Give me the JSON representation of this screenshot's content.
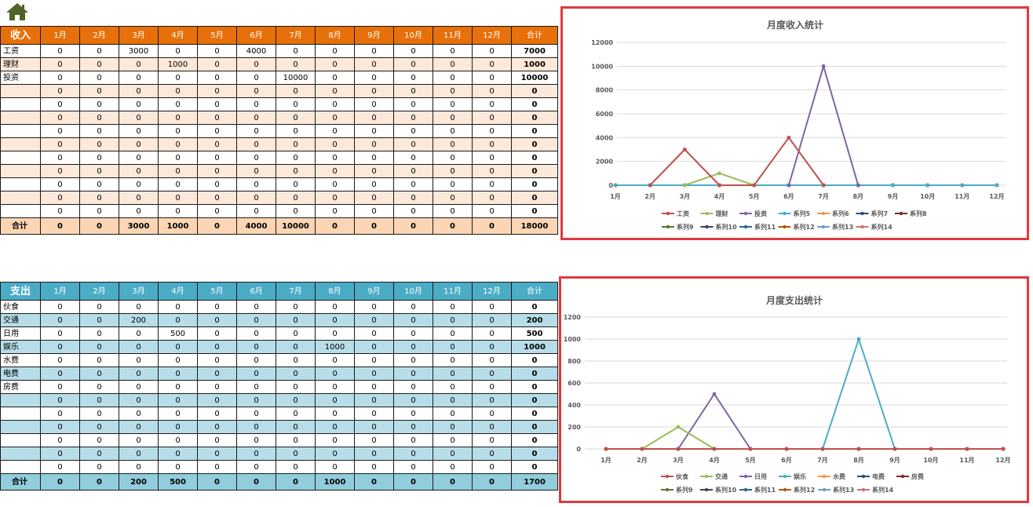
{
  "toolbar": {
    "home_icon": "home-icon",
    "home_color": "#4f6228"
  },
  "months": [
    "1月",
    "2月",
    "3月",
    "4月",
    "5月",
    "6月",
    "7月",
    "8月",
    "9月",
    "10月",
    "11月",
    "12月"
  ],
  "total_header": "合计",
  "sum_label": "合计",
  "income": {
    "corner": "收入",
    "header_color": "#e7700a",
    "rows": [
      {
        "label": "工资",
        "values": [
          0,
          0,
          3000,
          0,
          0,
          4000,
          0,
          0,
          0,
          0,
          0,
          0
        ],
        "total": 7000
      },
      {
        "label": "理财",
        "values": [
          0,
          0,
          0,
          1000,
          0,
          0,
          0,
          0,
          0,
          0,
          0,
          0
        ],
        "total": 1000
      },
      {
        "label": "投资",
        "values": [
          0,
          0,
          0,
          0,
          0,
          0,
          10000,
          0,
          0,
          0,
          0,
          0
        ],
        "total": 10000
      },
      {
        "label": "",
        "values": [
          0,
          0,
          0,
          0,
          0,
          0,
          0,
          0,
          0,
          0,
          0,
          0
        ],
        "total": 0
      },
      {
        "label": "",
        "values": [
          0,
          0,
          0,
          0,
          0,
          0,
          0,
          0,
          0,
          0,
          0,
          0
        ],
        "total": 0
      },
      {
        "label": "",
        "values": [
          0,
          0,
          0,
          0,
          0,
          0,
          0,
          0,
          0,
          0,
          0,
          0
        ],
        "total": 0
      },
      {
        "label": "",
        "values": [
          0,
          0,
          0,
          0,
          0,
          0,
          0,
          0,
          0,
          0,
          0,
          0
        ],
        "total": 0
      },
      {
        "label": "",
        "values": [
          0,
          0,
          0,
          0,
          0,
          0,
          0,
          0,
          0,
          0,
          0,
          0
        ],
        "total": 0
      },
      {
        "label": "",
        "values": [
          0,
          0,
          0,
          0,
          0,
          0,
          0,
          0,
          0,
          0,
          0,
          0
        ],
        "total": 0
      },
      {
        "label": "",
        "values": [
          0,
          0,
          0,
          0,
          0,
          0,
          0,
          0,
          0,
          0,
          0,
          0
        ],
        "total": 0
      },
      {
        "label": "",
        "values": [
          0,
          0,
          0,
          0,
          0,
          0,
          0,
          0,
          0,
          0,
          0,
          0
        ],
        "total": 0
      },
      {
        "label": "",
        "values": [
          0,
          0,
          0,
          0,
          0,
          0,
          0,
          0,
          0,
          0,
          0,
          0
        ],
        "total": 0
      },
      {
        "label": "",
        "values": [
          0,
          0,
          0,
          0,
          0,
          0,
          0,
          0,
          0,
          0,
          0,
          0
        ],
        "total": 0
      }
    ],
    "sum_values": [
      0,
      0,
      3000,
      1000,
      0,
      4000,
      10000,
      0,
      0,
      0,
      0,
      0
    ],
    "sum_total": 18000
  },
  "expense": {
    "corner": "支出",
    "header_color": "#4bacc6",
    "rows": [
      {
        "label": "伙食",
        "values": [
          0,
          0,
          0,
          0,
          0,
          0,
          0,
          0,
          0,
          0,
          0,
          0
        ],
        "total": 0
      },
      {
        "label": "交通",
        "values": [
          0,
          0,
          200,
          0,
          0,
          0,
          0,
          0,
          0,
          0,
          0,
          0
        ],
        "total": 200
      },
      {
        "label": "日用",
        "values": [
          0,
          0,
          0,
          500,
          0,
          0,
          0,
          0,
          0,
          0,
          0,
          0
        ],
        "total": 500
      },
      {
        "label": "娱乐",
        "values": [
          0,
          0,
          0,
          0,
          0,
          0,
          0,
          1000,
          0,
          0,
          0,
          0
        ],
        "total": 1000
      },
      {
        "label": "水费",
        "values": [
          0,
          0,
          0,
          0,
          0,
          0,
          0,
          0,
          0,
          0,
          0,
          0
        ],
        "total": 0
      },
      {
        "label": "电费",
        "values": [
          0,
          0,
          0,
          0,
          0,
          0,
          0,
          0,
          0,
          0,
          0,
          0
        ],
        "total": 0
      },
      {
        "label": "房费",
        "values": [
          0,
          0,
          0,
          0,
          0,
          0,
          0,
          0,
          0,
          0,
          0,
          0
        ],
        "total": 0
      },
      {
        "label": "",
        "values": [
          0,
          0,
          0,
          0,
          0,
          0,
          0,
          0,
          0,
          0,
          0,
          0
        ],
        "total": 0
      },
      {
        "label": "",
        "values": [
          0,
          0,
          0,
          0,
          0,
          0,
          0,
          0,
          0,
          0,
          0,
          0
        ],
        "total": 0
      },
      {
        "label": "",
        "values": [
          0,
          0,
          0,
          0,
          0,
          0,
          0,
          0,
          0,
          0,
          0,
          0
        ],
        "total": 0
      },
      {
        "label": "",
        "values": [
          0,
          0,
          0,
          0,
          0,
          0,
          0,
          0,
          0,
          0,
          0,
          0
        ],
        "total": 0
      },
      {
        "label": "",
        "values": [
          0,
          0,
          0,
          0,
          0,
          0,
          0,
          0,
          0,
          0,
          0,
          0
        ],
        "total": 0
      },
      {
        "label": "",
        "values": [
          0,
          0,
          0,
          0,
          0,
          0,
          0,
          0,
          0,
          0,
          0,
          0
        ],
        "total": 0
      }
    ],
    "sum_values": [
      0,
      0,
      200,
      500,
      0,
      0,
      0,
      1000,
      0,
      0,
      0,
      0
    ],
    "sum_total": 1700
  },
  "chart_data": [
    {
      "type": "line",
      "title": "月度收入统计",
      "categories": [
        "1月",
        "2月",
        "3月",
        "4月",
        "5月",
        "6月",
        "7月",
        "8月",
        "9月",
        "10月",
        "11月",
        "12月"
      ],
      "ylim": [
        0,
        12000
      ],
      "yticks": [
        0,
        2000,
        4000,
        6000,
        8000,
        10000,
        12000
      ],
      "grid": true,
      "legend": "bottom",
      "series": [
        {
          "name": "工资",
          "color": "#c0504d",
          "values": [
            null,
            0,
            3000,
            0,
            0,
            4000,
            0,
            null,
            null,
            null,
            null,
            null
          ]
        },
        {
          "name": "理财",
          "color": "#9bbb59",
          "values": [
            null,
            null,
            0,
            1000,
            0,
            null,
            null,
            null,
            null,
            null,
            null,
            null
          ]
        },
        {
          "name": "投资",
          "color": "#8064a2",
          "values": [
            null,
            null,
            null,
            null,
            null,
            0,
            10000,
            0,
            null,
            null,
            null,
            null
          ]
        },
        {
          "name": "系列5",
          "color": "#4bacc6",
          "values": [
            0,
            0,
            0,
            0,
            0,
            0,
            0,
            0,
            0,
            0,
            0,
            0
          ]
        },
        {
          "name": "系列6",
          "color": "#f79646",
          "values": [
            0,
            0,
            0,
            0,
            0,
            0,
            0,
            0,
            0,
            0,
            0,
            0
          ]
        },
        {
          "name": "系列7",
          "color": "#2c4d75",
          "values": [
            0,
            0,
            0,
            0,
            0,
            0,
            0,
            0,
            0,
            0,
            0,
            0
          ]
        },
        {
          "name": "系列8",
          "color": "#772c2a",
          "values": [
            0,
            0,
            0,
            0,
            0,
            0,
            0,
            0,
            0,
            0,
            0,
            0
          ]
        },
        {
          "name": "系列9",
          "color": "#5f7530",
          "values": [
            0,
            0,
            0,
            0,
            0,
            0,
            0,
            0,
            0,
            0,
            0,
            0
          ]
        },
        {
          "name": "系列10",
          "color": "#4d3b62",
          "values": [
            0,
            0,
            0,
            0,
            0,
            0,
            0,
            0,
            0,
            0,
            0,
            0
          ]
        },
        {
          "name": "系列11",
          "color": "#276a7c",
          "values": [
            0,
            0,
            0,
            0,
            0,
            0,
            0,
            0,
            0,
            0,
            0,
            0
          ]
        },
        {
          "name": "系列12",
          "color": "#b65708",
          "values": [
            0,
            0,
            0,
            0,
            0,
            0,
            0,
            0,
            0,
            0,
            0,
            0
          ]
        },
        {
          "name": "系列13",
          "color": "#729aca",
          "values": [
            0,
            0,
            0,
            0,
            0,
            0,
            0,
            0,
            0,
            0,
            0,
            0
          ]
        },
        {
          "name": "系列14",
          "color": "#cd7371",
          "values": [
            0,
            0,
            0,
            0,
            0,
            0,
            0,
            0,
            0,
            0,
            0,
            0
          ]
        }
      ]
    },
    {
      "type": "line",
      "title": "月度支出统计",
      "categories": [
        "1月",
        "2月",
        "3月",
        "4月",
        "5月",
        "6月",
        "7月",
        "8月",
        "9月",
        "10月",
        "11月",
        "12月"
      ],
      "ylim": [
        0,
        1200
      ],
      "yticks": [
        0,
        200,
        400,
        600,
        800,
        1000,
        1200
      ],
      "grid": true,
      "legend": "bottom",
      "series": [
        {
          "name": "伙食",
          "color": "#c0504d",
          "values": [
            0,
            0,
            0,
            0,
            0,
            0,
            0,
            0,
            0,
            0,
            0,
            0
          ]
        },
        {
          "name": "交通",
          "color": "#9bbb59",
          "values": [
            null,
            0,
            200,
            0,
            null,
            null,
            null,
            null,
            null,
            null,
            null,
            null
          ]
        },
        {
          "name": "日用",
          "color": "#8064a2",
          "values": [
            null,
            null,
            0,
            500,
            0,
            null,
            null,
            null,
            null,
            null,
            null,
            null
          ]
        },
        {
          "name": "娱乐",
          "color": "#4bacc6",
          "values": [
            null,
            null,
            null,
            null,
            null,
            null,
            0,
            1000,
            0,
            null,
            null,
            null
          ]
        },
        {
          "name": "水费",
          "color": "#f79646",
          "values": [
            0,
            0,
            0,
            0,
            0,
            0,
            0,
            0,
            0,
            0,
            0,
            0
          ]
        },
        {
          "name": "电费",
          "color": "#2c4d75",
          "values": [
            0,
            0,
            0,
            0,
            0,
            0,
            0,
            0,
            0,
            0,
            0,
            0
          ]
        },
        {
          "name": "房费",
          "color": "#772c2a",
          "values": [
            0,
            0,
            0,
            0,
            0,
            0,
            0,
            0,
            0,
            0,
            0,
            0
          ]
        },
        {
          "name": "系列9",
          "color": "#5f7530",
          "values": [
            0,
            0,
            0,
            0,
            0,
            0,
            0,
            0,
            0,
            0,
            0,
            0
          ]
        },
        {
          "name": "系列10",
          "color": "#4d3b62",
          "values": [
            0,
            0,
            0,
            0,
            0,
            0,
            0,
            0,
            0,
            0,
            0,
            0
          ]
        },
        {
          "name": "系列11",
          "color": "#276a7c",
          "values": [
            0,
            0,
            0,
            0,
            0,
            0,
            0,
            0,
            0,
            0,
            0,
            0
          ]
        },
        {
          "name": "系列12",
          "color": "#b65708",
          "values": [
            0,
            0,
            0,
            0,
            0,
            0,
            0,
            0,
            0,
            0,
            0,
            0
          ]
        },
        {
          "name": "系列13",
          "color": "#729aca",
          "values": [
            0,
            0,
            0,
            0,
            0,
            0,
            0,
            0,
            0,
            0,
            0,
            0
          ]
        },
        {
          "name": "系列14",
          "color": "#cd7371",
          "values": [
            0,
            0,
            0,
            0,
            0,
            0,
            0,
            0,
            0,
            0,
            0,
            0
          ]
        }
      ]
    }
  ]
}
